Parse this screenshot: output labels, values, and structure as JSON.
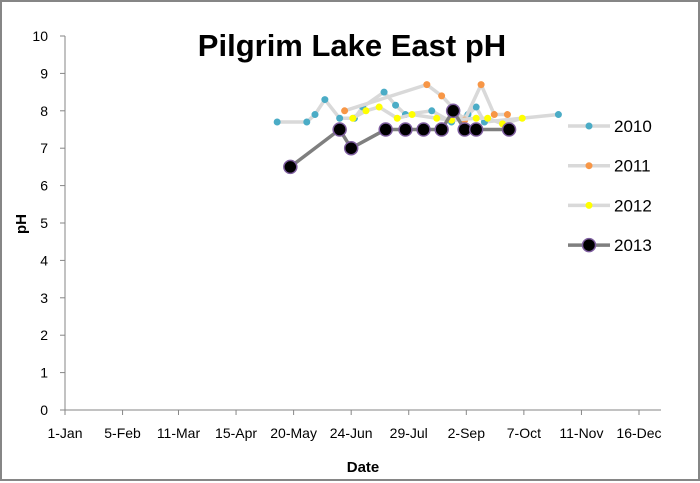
{
  "chart_data": {
    "type": "line",
    "title": "Pilgrim Lake East pH",
    "xlabel": "Date",
    "ylabel": "pH",
    "x_units": "day of year (0 = 1-Jan)",
    "xlim": [
      0,
      349
    ],
    "ylim": [
      0,
      10
    ],
    "x_ticks": [
      0,
      35,
      69,
      104,
      139,
      174,
      209,
      244,
      279,
      314,
      349
    ],
    "x_tick_labels": [
      "1-Jan",
      "5-Feb",
      "11-Mar",
      "15-Apr",
      "20-May",
      "24-Jun",
      "29-Jul",
      "2-Sep",
      "7-Oct",
      "11-Nov",
      "16-Dec"
    ],
    "y_ticks": [
      0,
      1,
      2,
      3,
      4,
      5,
      6,
      7,
      8,
      9,
      10
    ],
    "grid": false,
    "legend_position": "right",
    "series": [
      {
        "name": "2010",
        "color": "#4BACC6",
        "line": "#D9D9D9",
        "x": [
          129,
          147,
          152,
          158,
          167,
          176,
          181,
          194,
          201,
          207,
          223,
          235,
          245,
          250,
          255,
          300
        ],
        "y": [
          7.7,
          7.7,
          7.9,
          8.3,
          7.8,
          7.8,
          8.1,
          8.5,
          8.15,
          7.9,
          8.0,
          7.7,
          7.9,
          8.1,
          7.7,
          7.9
        ]
      },
      {
        "name": "2011",
        "color": "#F79646",
        "line": "#D9D9D9",
        "x": [
          170,
          220,
          229,
          243,
          253,
          261,
          269
        ],
        "y": [
          8.0,
          8.7,
          8.4,
          7.75,
          8.7,
          7.9,
          7.9
        ]
      },
      {
        "name": "2012",
        "color": "#FFFF00",
        "line": "#D9D9D9",
        "x": [
          175,
          183,
          191,
          202,
          211,
          226,
          235,
          250,
          257,
          266,
          278
        ],
        "y": [
          7.8,
          8.0,
          8.1,
          7.8,
          7.9,
          7.8,
          7.75,
          7.8,
          7.8,
          7.65,
          7.8
        ]
      },
      {
        "name": "2013",
        "color": "#000000",
        "line": "#7F7F7F",
        "edge": "#7F5FA0",
        "x": [
          137,
          167,
          174,
          195,
          207,
          218,
          229,
          236,
          243,
          250,
          270
        ],
        "y": [
          6.5,
          7.5,
          7.0,
          7.5,
          7.5,
          7.5,
          7.5,
          8.0,
          7.5,
          7.5,
          7.5
        ]
      }
    ]
  }
}
